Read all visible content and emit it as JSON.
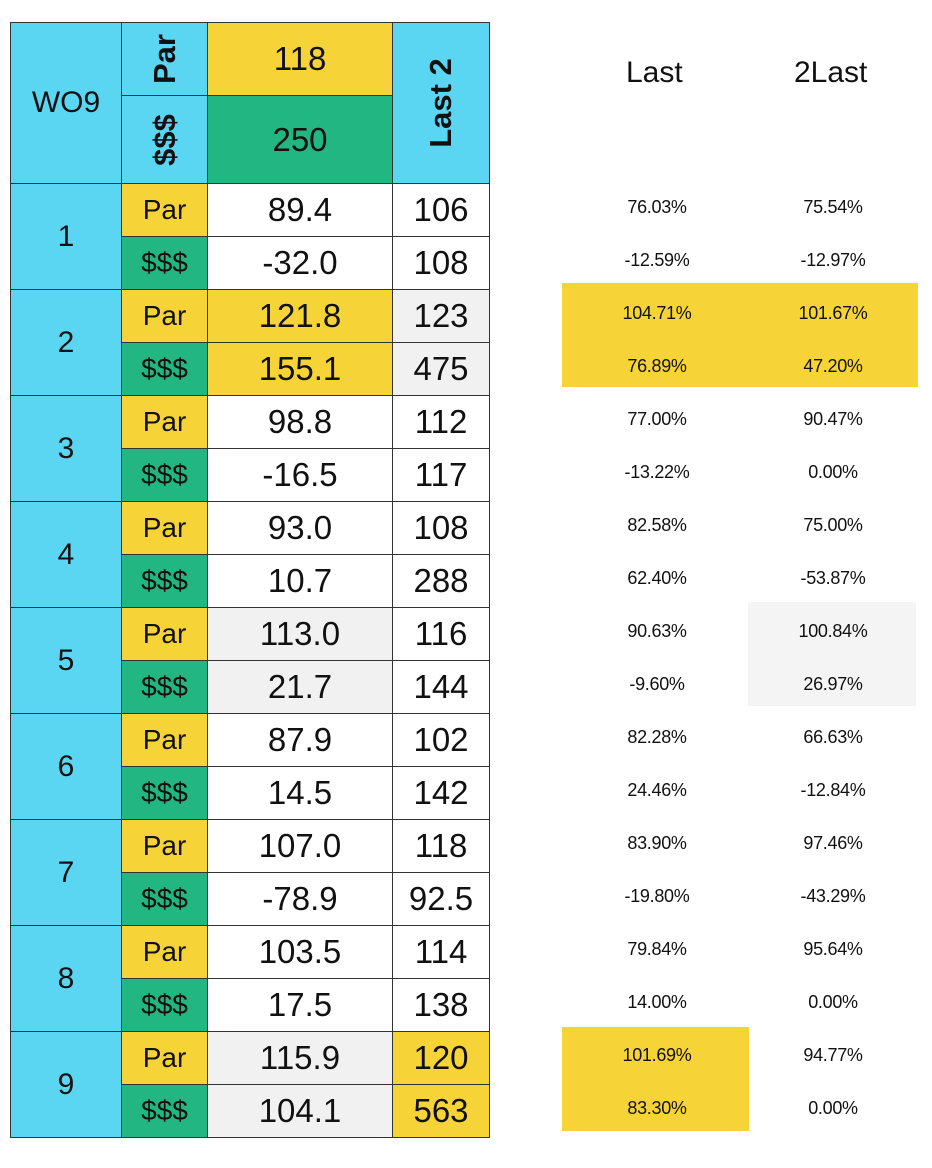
{
  "header": {
    "title": "WO9",
    "par_label": "Par",
    "money_label": "$$$",
    "par_value": "118",
    "money_value": "250",
    "last2_label": "Last 2"
  },
  "right_headers": {
    "last": "Last",
    "two_last": "2Last"
  },
  "rows": [
    {
      "num": "1",
      "par_label": "Par",
      "money_label": "$$$",
      "par": "89.4",
      "par_last2": "106",
      "money": "-32.0",
      "money_last2": "108",
      "par_last_pct": "76.03%",
      "par_2last_pct": "75.54%",
      "money_last_pct": "-12.59%",
      "money_2last_pct": "-12.97%"
    },
    {
      "num": "2",
      "par_label": "Par",
      "money_label": "$$$",
      "par": "121.8",
      "par_last2": "123",
      "money": "155.1",
      "money_last2": "475",
      "par_last_pct": "104.71%",
      "par_2last_pct": "101.67%",
      "money_last_pct": "76.89%",
      "money_2last_pct": "47.20%"
    },
    {
      "num": "3",
      "par_label": "Par",
      "money_label": "$$$",
      "par": "98.8",
      "par_last2": "112",
      "money": "-16.5",
      "money_last2": "117",
      "par_last_pct": "77.00%",
      "par_2last_pct": "90.47%",
      "money_last_pct": "-13.22%",
      "money_2last_pct": "0.00%"
    },
    {
      "num": "4",
      "par_label": "Par",
      "money_label": "$$$",
      "par": "93.0",
      "par_last2": "108",
      "money": "10.7",
      "money_last2": "288",
      "par_last_pct": "82.58%",
      "par_2last_pct": "75.00%",
      "money_last_pct": "62.40%",
      "money_2last_pct": "-53.87%"
    },
    {
      "num": "5",
      "par_label": "Par",
      "money_label": "$$$",
      "par": "113.0",
      "par_last2": "116",
      "money": "21.7",
      "money_last2": "144",
      "par_last_pct": "90.63%",
      "par_2last_pct": "100.84%",
      "money_last_pct": "-9.60%",
      "money_2last_pct": "26.97%"
    },
    {
      "num": "6",
      "par_label": "Par",
      "money_label": "$$$",
      "par": "87.9",
      "par_last2": "102",
      "money": "14.5",
      "money_last2": "142",
      "par_last_pct": "82.28%",
      "par_2last_pct": "66.63%",
      "money_last_pct": "24.46%",
      "money_2last_pct": "-12.84%"
    },
    {
      "num": "7",
      "par_label": "Par",
      "money_label": "$$$",
      "par": "107.0",
      "par_last2": "118",
      "money": "-78.9",
      "money_last2": "92.5",
      "par_last_pct": "83.90%",
      "par_2last_pct": "97.46%",
      "money_last_pct": "-19.80%",
      "money_2last_pct": "-43.29%"
    },
    {
      "num": "8",
      "par_label": "Par",
      "money_label": "$$$",
      "par": "103.5",
      "par_last2": "114",
      "money": "17.5",
      "money_last2": "138",
      "par_last_pct": "79.84%",
      "par_2last_pct": "95.64%",
      "money_last_pct": "14.00%",
      "money_2last_pct": "0.00%"
    },
    {
      "num": "9",
      "par_label": "Par",
      "money_label": "$$$",
      "par": "115.9",
      "par_last2": "120",
      "money": "104.1",
      "money_last2": "563",
      "par_last_pct": "101.69%",
      "par_2last_pct": "94.77%",
      "money_last_pct": "83.30%",
      "money_2last_pct": "0.00%"
    }
  ],
  "colors": {
    "blue": "#5ad6f3",
    "yellow": "#f6d437",
    "green": "#22b683",
    "white": "#ffffff",
    "grey": "#f1f1f1"
  },
  "highlights": {
    "par_value": [
      "white",
      "yellow",
      "white",
      "white",
      "grey",
      "white",
      "white",
      "white",
      "grey"
    ],
    "money_value": [
      "white",
      "yellow",
      "white",
      "white",
      "grey",
      "white",
      "white",
      "white",
      "grey"
    ],
    "last2": [
      "white",
      "grey",
      "white",
      "white",
      "white",
      "white",
      "white",
      "white",
      "yellow"
    ]
  }
}
